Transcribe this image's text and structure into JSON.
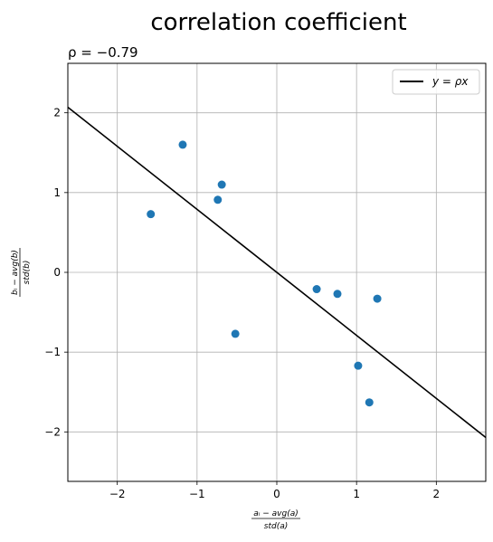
{
  "chart_data": {
    "type": "scatter",
    "title": "correlation coefficient",
    "subtitle": "ρ = −0.79",
    "xlabel_num": "aᵢ − avg(a)",
    "xlabel_den": "std(a)",
    "ylabel_num": "bᵢ − avg(b)",
    "ylabel_den": "std(b)",
    "xlim": [
      -2.62,
      2.62
    ],
    "ylim": [
      -2.62,
      2.62
    ],
    "xticks": [
      -2,
      -1,
      0,
      1,
      2
    ],
    "yticks": [
      -2,
      -1,
      0,
      1,
      2
    ],
    "xtick_labels": [
      "−2",
      "−1",
      "0",
      "1",
      "2"
    ],
    "ytick_labels": [
      "−2",
      "−1",
      "0",
      "1",
      "2"
    ],
    "grid": true,
    "legend_position": "top-right",
    "series": [
      {
        "kind": "points",
        "color": "#1f77b4",
        "x": [
          -1.58,
          -1.18,
          -0.69,
          -0.74,
          -0.52,
          0.5,
          0.76,
          1.26,
          1.02,
          1.16
        ],
        "y": [
          0.73,
          1.6,
          1.1,
          0.91,
          -0.77,
          -0.21,
          -0.27,
          -0.33,
          -1.17,
          -1.63
        ]
      },
      {
        "kind": "line",
        "name": "y = ρx",
        "color": "#000000",
        "slope": -0.79
      }
    ]
  }
}
